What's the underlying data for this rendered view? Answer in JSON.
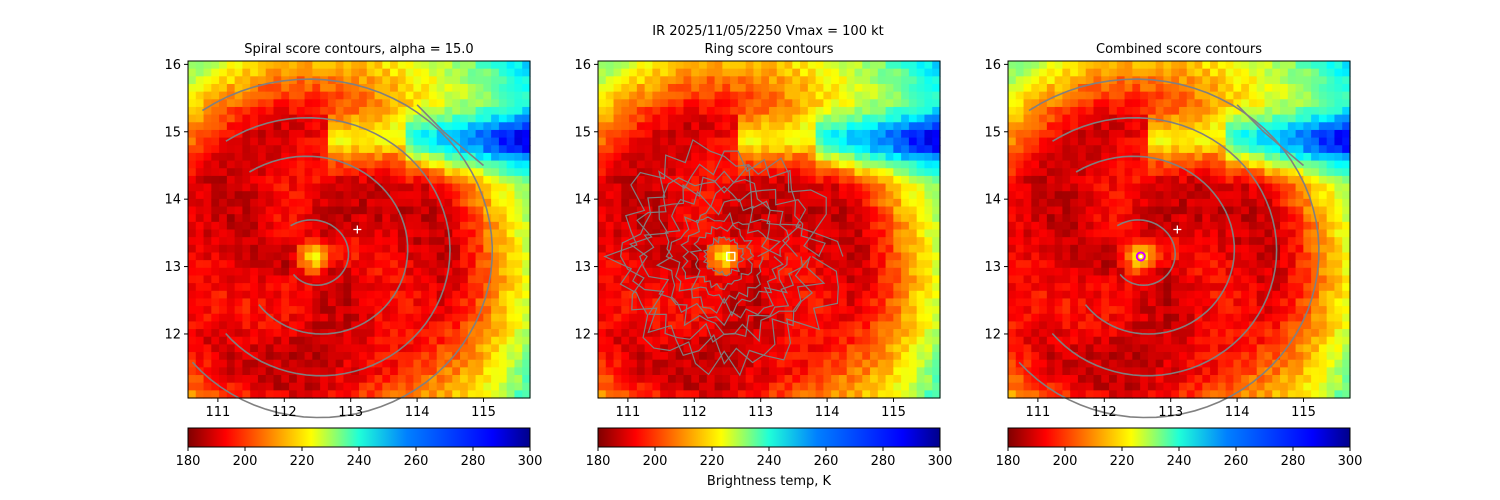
{
  "figure": {
    "suptitle_line1": "IR  2025/11/05/2250    Vmax = 100 kt",
    "colorbar_label": "Brightness temp, K"
  },
  "chart_data": [
    {
      "type": "heatmap",
      "title": "Spiral score contours, alpha = 15.0",
      "xlim": [
        110.55,
        115.7
      ],
      "ylim": [
        11.05,
        16.05
      ],
      "xticks": [
        "111",
        "112",
        "113",
        "114",
        "115"
      ],
      "yticks": [
        "12",
        "13",
        "14",
        "15",
        "16"
      ],
      "field": "IR brightness temperature (K)",
      "storm_center": {
        "lon": 112.45,
        "lat": 13.15
      },
      "eye_radius_deg": 0.25,
      "forecast_marker": {
        "symbol": "+",
        "lon": 113.1,
        "lat": 13.55
      },
      "contours": "spiral score"
    },
    {
      "type": "heatmap",
      "title": "Ring score contours",
      "xlim": [
        110.55,
        115.7
      ],
      "ylim": [
        11.05,
        16.05
      ],
      "xticks": [
        "111",
        "112",
        "113",
        "114",
        "115"
      ],
      "yticks": [
        "12",
        "13",
        "14",
        "15",
        "16"
      ],
      "field": "IR brightness temperature (K)",
      "storm_center": {
        "lon": 112.45,
        "lat": 13.15
      },
      "ring_max_marker": {
        "symbol": "square",
        "lon": 112.55,
        "lat": 13.15
      },
      "contours": "ring score"
    },
    {
      "type": "heatmap",
      "title": "Combined score contours",
      "xlim": [
        110.55,
        115.7
      ],
      "ylim": [
        11.05,
        16.05
      ],
      "xticks": [
        "111",
        "112",
        "113",
        "114",
        "115"
      ],
      "yticks": [
        "12",
        "13",
        "14",
        "15",
        "16"
      ],
      "field": "IR brightness temperature (K)",
      "storm_center": {
        "lon": 112.55,
        "lat": 13.15
      },
      "forecast_marker": {
        "symbol": "+",
        "lon": 113.1,
        "lat": 13.55
      },
      "combined_max_marker": {
        "symbol": "circle",
        "lon": 112.55,
        "lat": 13.15
      },
      "contours": "combined score"
    }
  ],
  "colorbar": {
    "min": 180,
    "max": 300,
    "ticks": [
      "180",
      "200",
      "220",
      "240",
      "260",
      "280",
      "300"
    ],
    "colormap": "jet_r"
  },
  "colors": {
    "contour": "#808080",
    "marker_white": "#ffffff",
    "marker_magenta": "#d400ff"
  }
}
